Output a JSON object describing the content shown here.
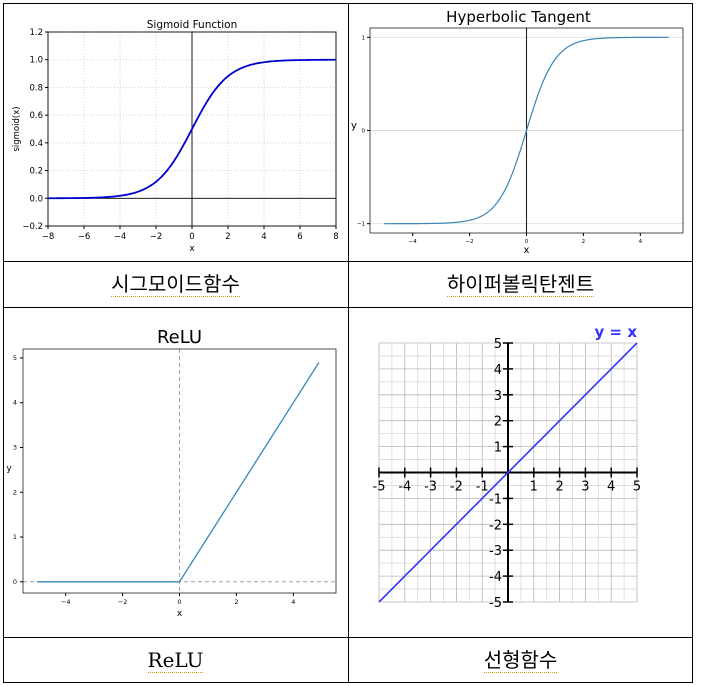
{
  "captions": {
    "sigmoid": "시그모이드함수",
    "tanh": "하이퍼볼릭탄젠트",
    "relu": "ReLU",
    "linear": "선형함수"
  },
  "chart_data": [
    {
      "type": "line",
      "title": "Sigmoid Function",
      "xlabel": "x",
      "ylabel": "sigmoid(x)",
      "xlim": [
        -8,
        8
      ],
      "ylim": [
        -0.2,
        1.2
      ],
      "xticks": [
        "−8",
        "−6",
        "−4",
        "−2",
        "0",
        "2",
        "4",
        "6",
        "8"
      ],
      "yticks": [
        "−0.2",
        "0.0",
        "0.2",
        "0.4",
        "0.6",
        "0.8",
        "1.0",
        "1.2"
      ],
      "series": [
        {
          "function": "sigmoid",
          "x_range": [
            -8,
            8
          ],
          "color": "#0000cc"
        }
      ],
      "grid": true
    },
    {
      "type": "line",
      "title": "Hyperbolic Tangent",
      "xlabel": "x",
      "ylabel": "y",
      "xlim": [
        -5.5,
        5.5
      ],
      "ylim": [
        -1.1,
        1.1
      ],
      "xticks": [
        "−4",
        "−2",
        "0",
        "2",
        "4"
      ],
      "yticks": [
        "−1",
        "0",
        "1"
      ],
      "series": [
        {
          "function": "tanh",
          "x_range": [
            -5,
            5
          ],
          "color": "#3a86b8"
        }
      ],
      "grid": false
    },
    {
      "type": "line",
      "title": "ReLU",
      "xlabel": "x",
      "ylabel": "y",
      "xlim": [
        -5.5,
        5.5
      ],
      "ylim": [
        -0.25,
        5.2
      ],
      "xticks": [
        "−4",
        "−2",
        "0",
        "2",
        "4"
      ],
      "yticks": [
        "0",
        "1",
        "2",
        "3",
        "4",
        "5"
      ],
      "series": [
        {
          "function": "relu",
          "x_range": [
            -5,
            4.9
          ],
          "color": "#3a86b8"
        }
      ],
      "grid": false
    },
    {
      "type": "line",
      "title": "",
      "legend": "y = x",
      "xlim": [
        -5,
        5
      ],
      "ylim": [
        -5,
        5
      ],
      "xticks": [
        "-5",
        "-4",
        "-3",
        "-2",
        "-1",
        "1",
        "2",
        "3",
        "4",
        "5"
      ],
      "yticks": [
        "5",
        "4",
        "3",
        "2",
        "1",
        "-1",
        "-2",
        "-3",
        "-4",
        "-5"
      ],
      "series": [
        {
          "function": "identity",
          "x_range": [
            -5,
            5
          ],
          "color": "#3333ff"
        }
      ],
      "grid": true
    }
  ]
}
